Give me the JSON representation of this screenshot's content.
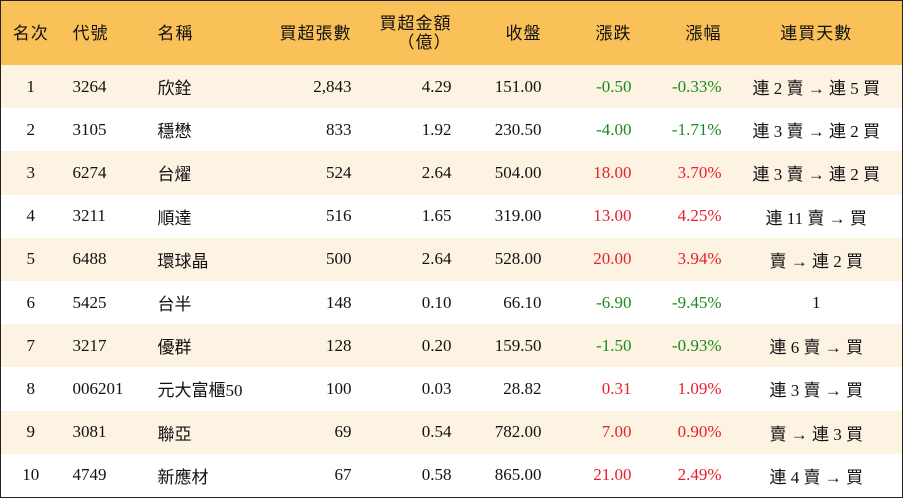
{
  "table": {
    "up_color": "#e8202a",
    "down_color": "#1a8a1e",
    "header": [
      "名次",
      "代號",
      "名稱",
      "買超張數",
      "買超金額\n（億）",
      "收盤",
      "漲跌",
      "漲幅",
      "連買天數"
    ],
    "rows": [
      [
        "1",
        "3264",
        "欣銓",
        "2,843",
        "4.29",
        "151.00",
        "-0.50",
        "-0.33%",
        "連 2 賣 → 連 5 買"
      ],
      [
        "2",
        "3105",
        "穩懋",
        "833",
        "1.92",
        "230.50",
        "-4.00",
        "-1.71%",
        "連 3 賣 → 連 2 買"
      ],
      [
        "3",
        "6274",
        "台燿",
        "524",
        "2.64",
        "504.00",
        "18.00",
        "3.70%",
        "連 3 賣 → 連 2 買"
      ],
      [
        "4",
        "3211",
        "順達",
        "516",
        "1.65",
        "319.00",
        "13.00",
        "4.25%",
        "連 11 賣 → 買"
      ],
      [
        "5",
        "6488",
        "環球晶",
        "500",
        "2.64",
        "528.00",
        "20.00",
        "3.94%",
        "賣 → 連 2 買"
      ],
      [
        "6",
        "5425",
        "台半",
        "148",
        "0.10",
        "66.10",
        "-6.90",
        "-9.45%",
        "1"
      ],
      [
        "7",
        "3217",
        "優群",
        "128",
        "0.20",
        "159.50",
        "-1.50",
        "-0.93%",
        "連 6 賣 → 買"
      ],
      [
        "8",
        "006201",
        "元大富櫃50",
        "100",
        "0.03",
        "28.82",
        "0.31",
        "1.09%",
        "連 3 賣 → 買"
      ],
      [
        "9",
        "3081",
        "聯亞",
        "69",
        "0.54",
        "782.00",
        "7.00",
        "0.90%",
        "賣 → 連 3 買"
      ],
      [
        "10",
        "4749",
        "新應材",
        "67",
        "0.58",
        "865.00",
        "21.00",
        "2.49%",
        "連 4 賣 → 買"
      ]
    ]
  }
}
